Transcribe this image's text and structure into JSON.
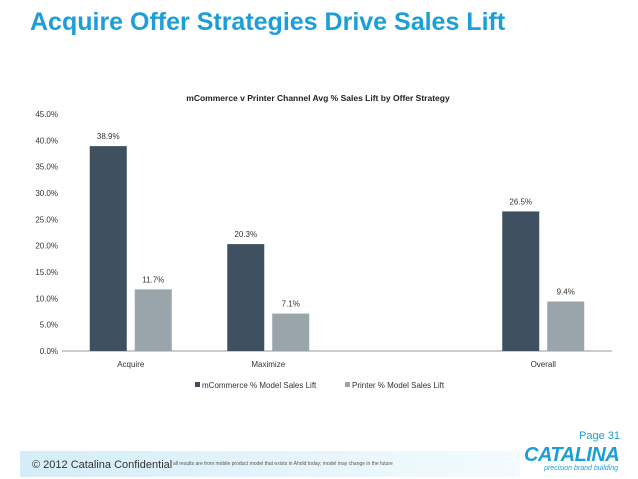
{
  "slide": {
    "title": "Acquire Offer Strategies Drive Sales Lift",
    "page": "Page 31",
    "copyright": "© 2012 Catalina Confidential",
    "disclaimer": "all results are from mobile product model that exists in Ahold today; model may change in the future",
    "logo_text": "CATALINA",
    "logo_tagline": "precision brand building",
    "accent_color": "#1c9ed8"
  },
  "chart_data": {
    "type": "bar",
    "title": "mCommerce v Printer Channel Avg % Sales Lift by Offer Strategy",
    "categories": [
      "Acquire",
      "Maximize",
      "",
      "Overall"
    ],
    "series": [
      {
        "name": "mCommerce % Model Sales Lift",
        "values": [
          38.9,
          20.3,
          null,
          26.5
        ],
        "labels": [
          "38.9%",
          "20.3%",
          "",
          "26.5%"
        ],
        "color": "#3f5160"
      },
      {
        "name": "Printer  % Model Sales Lift",
        "values": [
          11.7,
          7.1,
          null,
          9.4
        ],
        "labels": [
          "11.7%",
          "7.1%",
          "",
          "9.4%"
        ],
        "color": "#9aa4ab"
      }
    ],
    "ylim": [
      0,
      45
    ],
    "yticks": [
      "0.0%",
      "5.0%",
      "10.0%",
      "15.0%",
      "20.0%",
      "25.0%",
      "30.0%",
      "35.0%",
      "40.0%",
      "45.0%"
    ],
    "grid": false,
    "legend": "bottom"
  }
}
